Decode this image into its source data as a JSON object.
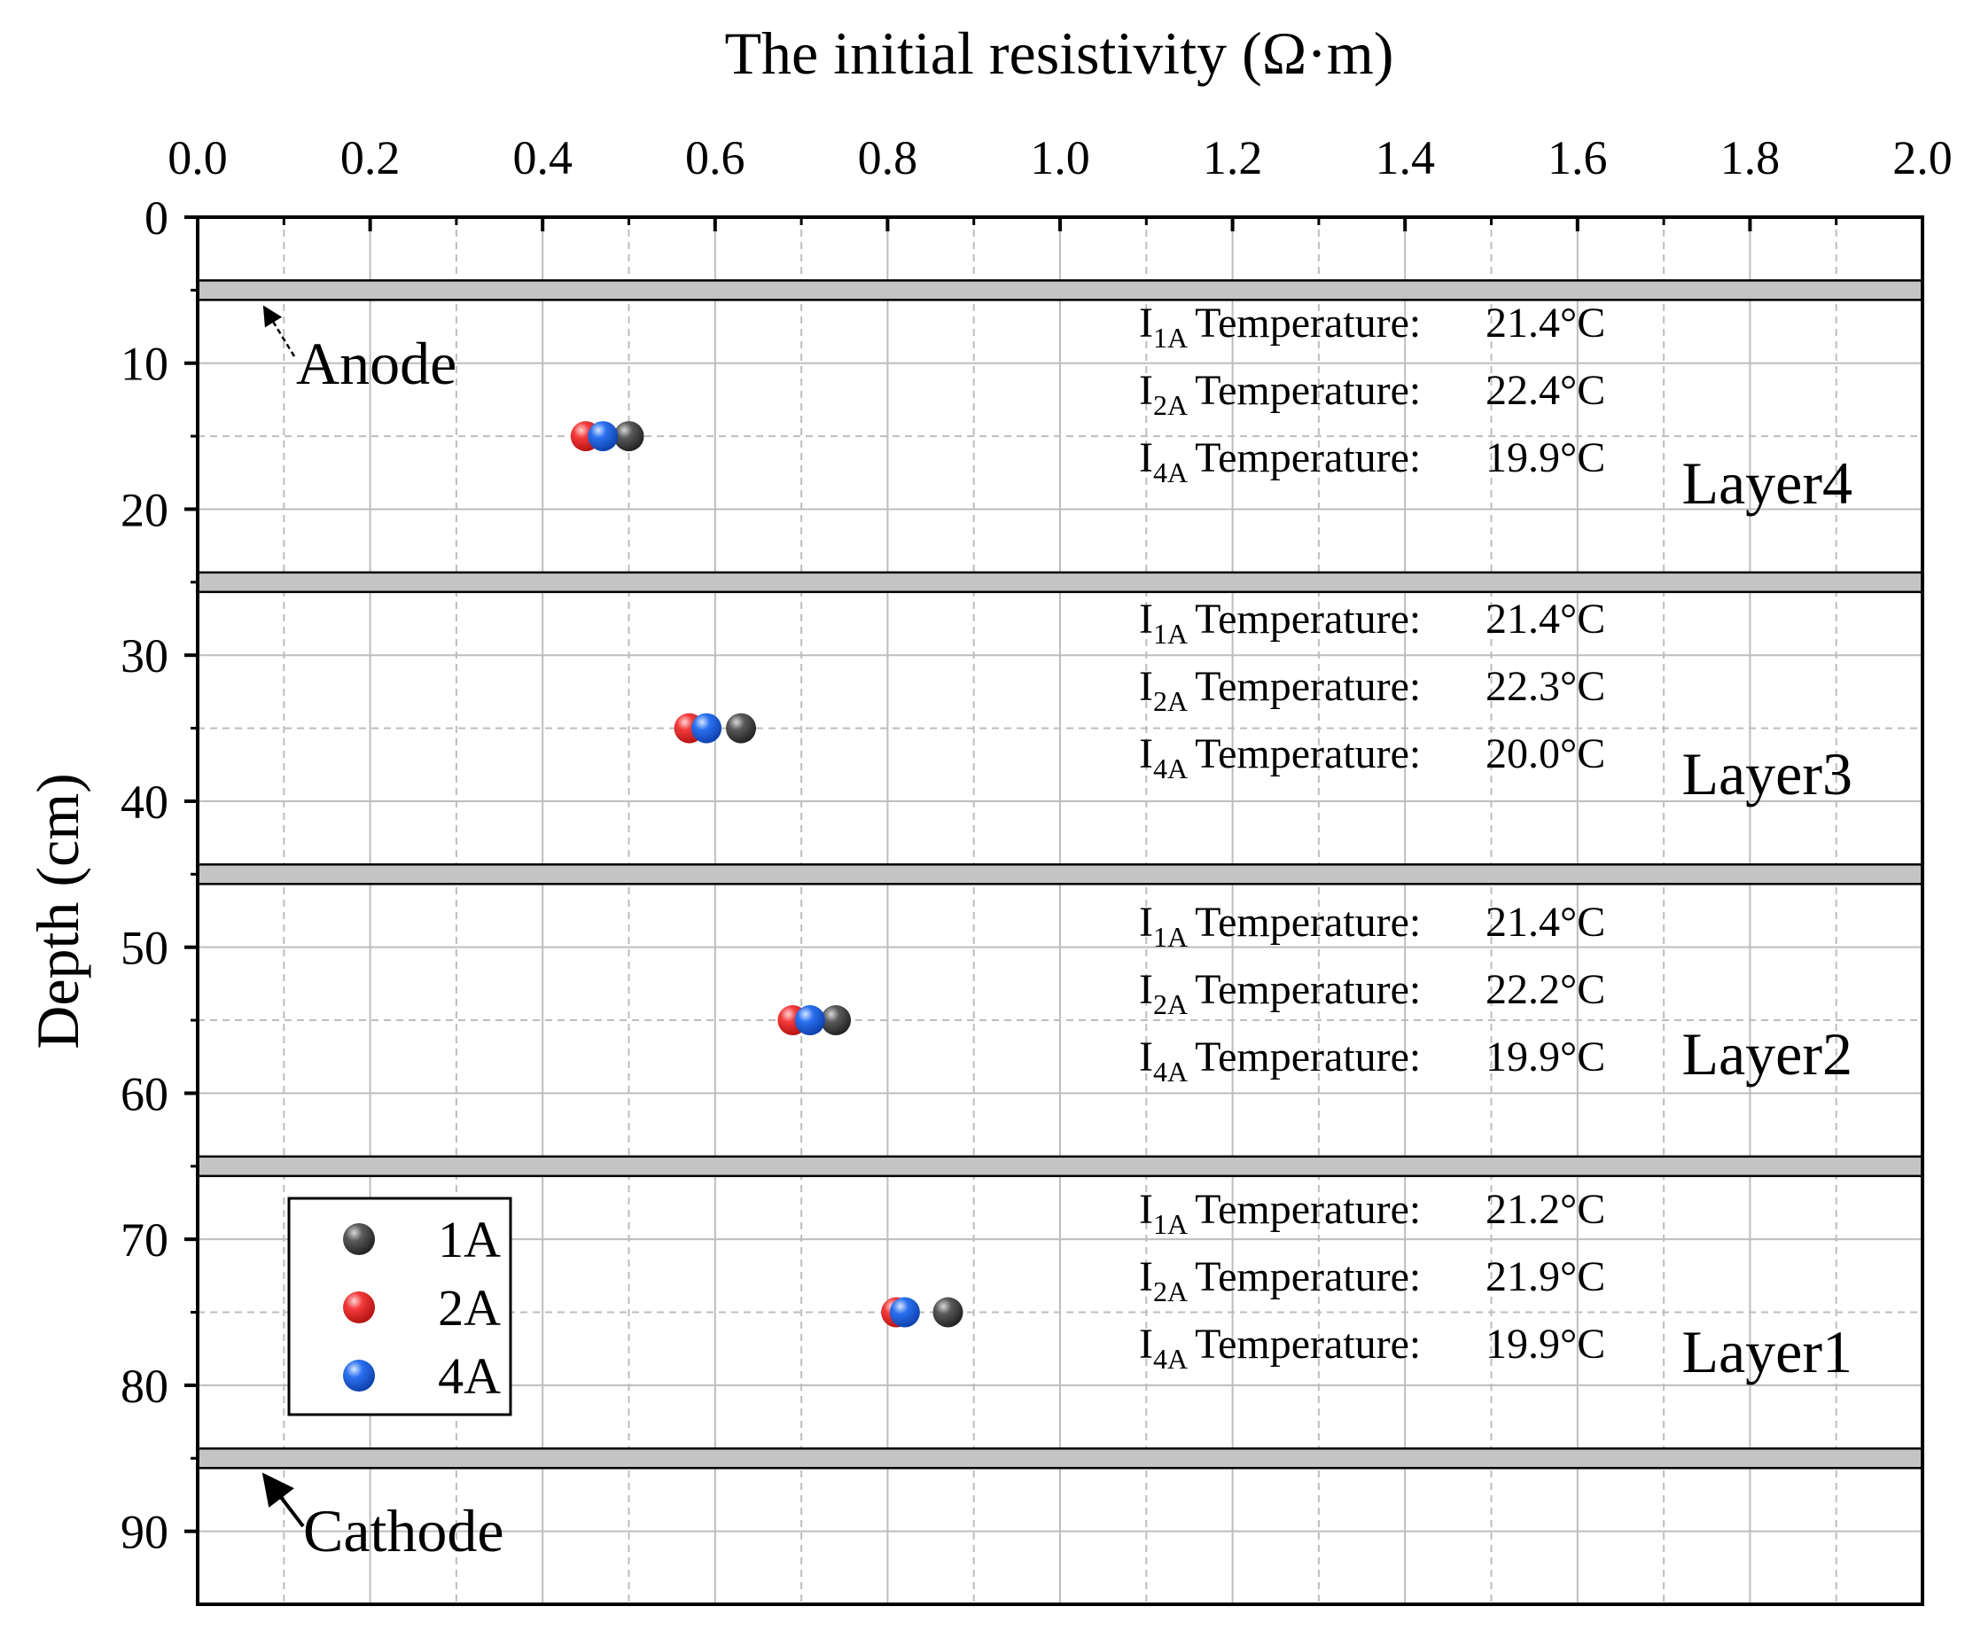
{
  "chart_data": {
    "type": "scatter",
    "title": "",
    "xlabel": "The initial resistivity (Ω·m)",
    "ylabel": "Depth (cm)",
    "xlim": [
      0,
      2.0
    ],
    "ylim": [
      0,
      95
    ],
    "y_inverted": true,
    "x_axis_position": "top",
    "x_ticks": [
      "0.0",
      "0.2",
      "0.4",
      "0.6",
      "0.8",
      "1.0",
      "1.2",
      "1.4",
      "1.6",
      "1.8",
      "2.0"
    ],
    "y_ticks": [
      "0",
      "10",
      "20",
      "30",
      "40",
      "50",
      "60",
      "70",
      "80",
      "90"
    ],
    "grid": true,
    "series": [
      {
        "name": "1A",
        "color": "#3a3a3a",
        "points": [
          {
            "x": 0.5,
            "y": 15
          },
          {
            "x": 0.63,
            "y": 35
          },
          {
            "x": 0.74,
            "y": 55
          },
          {
            "x": 0.87,
            "y": 75
          }
        ]
      },
      {
        "name": "2A",
        "color": "#ee2b2b",
        "points": [
          {
            "x": 0.45,
            "y": 15
          },
          {
            "x": 0.57,
            "y": 35
          },
          {
            "x": 0.69,
            "y": 55
          },
          {
            "x": 0.81,
            "y": 75
          }
        ]
      },
      {
        "name": "4A",
        "color": "#1c64e6",
        "points": [
          {
            "x": 0.47,
            "y": 15
          },
          {
            "x": 0.59,
            "y": 35
          },
          {
            "x": 0.71,
            "y": 55
          },
          {
            "x": 0.82,
            "y": 75
          }
        ]
      }
    ],
    "separator_bands": [
      5,
      25,
      45,
      65,
      85
    ],
    "electrode_labels": [
      {
        "text": "Anode",
        "depth": 5
      },
      {
        "text": "Cathode",
        "depth": 85
      }
    ],
    "layers": [
      {
        "name": "Layer4",
        "temperatures": [
          {
            "current": "1A",
            "label": "Temperature:",
            "value": "21.4°C"
          },
          {
            "current": "2A",
            "label": "Temperature:",
            "value": "22.4°C"
          },
          {
            "current": "4A",
            "label": "Temperature:",
            "value": "19.9°C"
          }
        ]
      },
      {
        "name": "Layer3",
        "temperatures": [
          {
            "current": "1A",
            "label": "Temperature:",
            "value": "21.4°C"
          },
          {
            "current": "2A",
            "label": "Temperature:",
            "value": "22.3°C"
          },
          {
            "current": "4A",
            "label": "Temperature:",
            "value": "20.0°C"
          }
        ]
      },
      {
        "name": "Layer2",
        "temperatures": [
          {
            "current": "1A",
            "label": "Temperature:",
            "value": "21.4°C"
          },
          {
            "current": "2A",
            "label": "Temperature:",
            "value": "22.2°C"
          },
          {
            "current": "4A",
            "label": "Temperature:",
            "value": "19.9°C"
          }
        ]
      },
      {
        "name": "Layer1",
        "temperatures": [
          {
            "current": "1A",
            "label": "Temperature:",
            "value": "21.2°C"
          },
          {
            "current": "2A",
            "label": "Temperature:",
            "value": "21.9°C"
          },
          {
            "current": "4A",
            "label": "Temperature:",
            "value": "19.9°C"
          }
        ]
      }
    ],
    "legend": {
      "placement": "bottom-left",
      "entries": [
        "1A",
        "2A",
        "4A"
      ]
    }
  }
}
